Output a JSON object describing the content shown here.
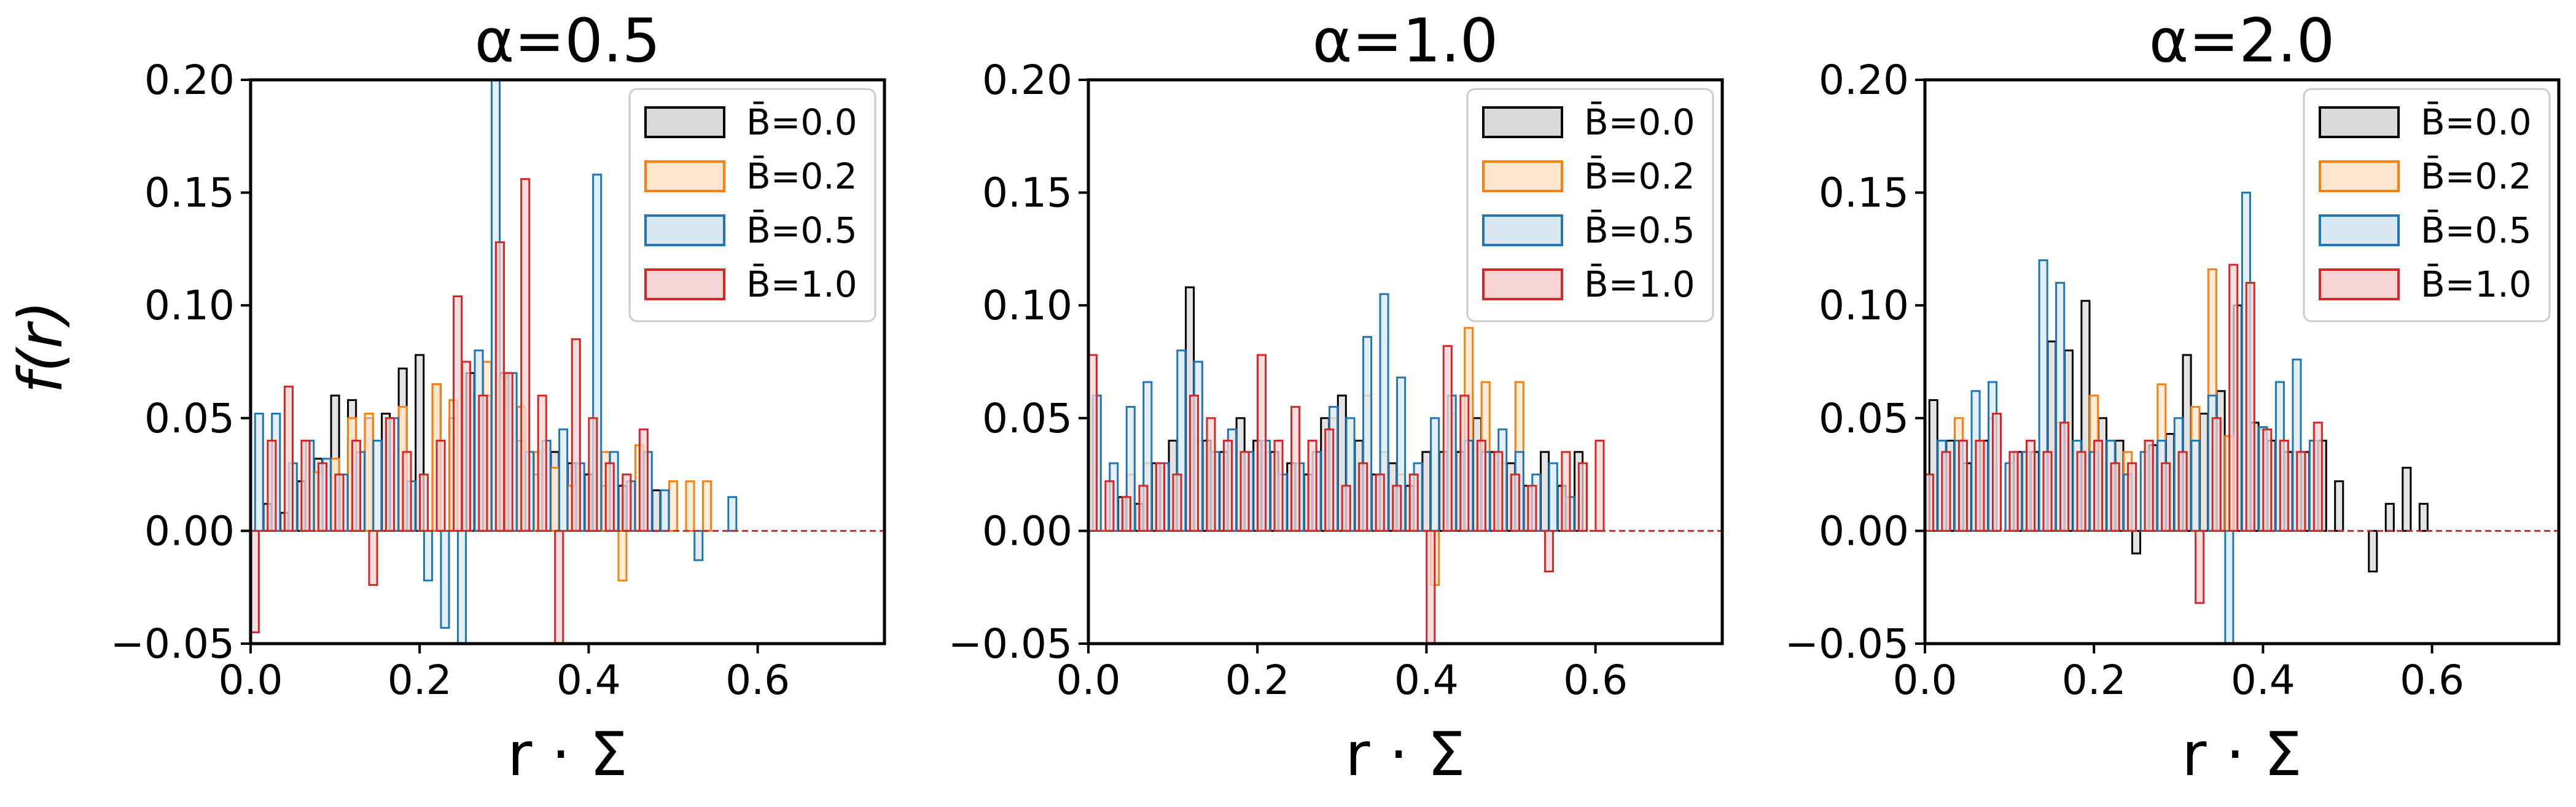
{
  "figure": {
    "ylabel": "f(r)"
  },
  "colors": {
    "B=0.0": "#000000",
    "B=0.2": "#ff7f0e",
    "B=0.5": "#1f77b4",
    "B=1.0": "#d62728"
  },
  "chart_data": [
    {
      "type": "bar",
      "title": "α=0.5",
      "xlabel": "r · Σ",
      "xlim": [
        0,
        0.75
      ],
      "ylim": [
        -0.05,
        0.2
      ],
      "xticks": [
        "0.0",
        "0.2",
        "0.4",
        "0.6"
      ],
      "yticks": [
        "−0.05",
        "0.00",
        "0.05",
        "0.10",
        "0.15",
        "0.20"
      ],
      "legend": {
        "position": "top-right",
        "entries": [
          "B̄=0.0",
          "B̄=0.2",
          "B̄=0.5",
          "B̄=1.0"
        ]
      },
      "series": [
        {
          "name": "B̄=0.0",
          "x": [
            0.02,
            0.04,
            0.06,
            0.08,
            0.1,
            0.12,
            0.14,
            0.16,
            0.18,
            0.2,
            0.22,
            0.24,
            0.26,
            0.28,
            0.3,
            0.32,
            0.34,
            0.36,
            0.38,
            0.4,
            0.42,
            0.44,
            0.48
          ],
          "values": [
            0.012,
            0.008,
            0.022,
            0.032,
            0.06,
            0.058,
            0.05,
            0.052,
            0.072,
            0.078,
            0.065,
            0.05,
            0.07,
            0.06,
            0.07,
            0.04,
            0.025,
            0.035,
            0.03,
            0.025,
            0.02,
            0.02,
            0.018
          ]
        },
        {
          "name": "B̄=0.2",
          "x": [
            0.08,
            0.1,
            0.12,
            0.14,
            0.18,
            0.22,
            0.24,
            0.28,
            0.3,
            0.32,
            0.34,
            0.36,
            0.38,
            0.42,
            0.44,
            0.46,
            0.5,
            0.52,
            0.54
          ],
          "values": [
            0.026,
            0.032,
            0.05,
            0.052,
            0.055,
            0.065,
            0.058,
            0.075,
            0.068,
            0.055,
            0.035,
            0.028,
            0.02,
            0.035,
            -0.022,
            0.038,
            0.022,
            0.022,
            0.022
          ]
        },
        {
          "name": "B̄=0.5",
          "x": [
            0.01,
            0.03,
            0.05,
            0.07,
            0.09,
            0.11,
            0.13,
            0.15,
            0.17,
            0.19,
            0.21,
            0.23,
            0.25,
            0.27,
            0.29,
            0.31,
            0.33,
            0.35,
            0.37,
            0.39,
            0.41,
            0.43,
            0.45,
            0.47,
            0.49,
            0.53,
            0.57
          ],
          "values": [
            0.052,
            0.052,
            0.03,
            0.04,
            0.032,
            0.025,
            0.035,
            0.04,
            0.05,
            0.022,
            -0.022,
            -0.043,
            -0.05,
            0.08,
            0.2,
            0.07,
            0.035,
            0.04,
            0.045,
            0.03,
            0.158,
            0.035,
            0.022,
            0.035,
            0.018,
            -0.013,
            0.015
          ]
        },
        {
          "name": "B̄=1.0",
          "x": [
            0.005,
            0.025,
            0.045,
            0.065,
            0.085,
            0.105,
            0.125,
            0.145,
            0.165,
            0.185,
            0.205,
            0.225,
            0.245,
            0.255,
            0.275,
            0.295,
            0.305,
            0.325,
            0.345,
            0.365,
            0.385,
            0.405,
            0.425,
            0.445,
            0.465
          ],
          "values": [
            -0.045,
            0.04,
            0.064,
            0.04,
            0.03,
            0.025,
            0.04,
            -0.024,
            0.05,
            0.035,
            0.025,
            0.04,
            0.104,
            0.075,
            0.06,
            0.128,
            0.07,
            0.156,
            0.06,
            -0.05,
            0.085,
            0.05,
            0.03,
            0.025,
            0.045
          ]
        }
      ]
    },
    {
      "type": "bar",
      "title": "α=1.0",
      "xlabel": "r · Σ",
      "xlim": [
        0,
        0.75
      ],
      "ylim": [
        -0.05,
        0.2
      ],
      "xticks": [
        "0.0",
        "0.2",
        "0.4",
        "0.6"
      ],
      "yticks": [
        "−0.05",
        "0.00",
        "0.05",
        "0.10",
        "0.15",
        "0.20"
      ],
      "legend": {
        "position": "top-right",
        "entries": [
          "B̄=0.0",
          "B̄=0.2",
          "B̄=0.5",
          "B̄=1.0"
        ]
      },
      "series": [
        {
          "name": "B̄=0.0",
          "x": [
            0.04,
            0.06,
            0.08,
            0.1,
            0.12,
            0.14,
            0.16,
            0.18,
            0.2,
            0.22,
            0.24,
            0.26,
            0.28,
            0.3,
            0.32,
            0.34,
            0.36,
            0.38,
            0.4,
            0.42,
            0.44,
            0.46,
            0.48,
            0.5,
            0.52,
            0.54,
            0.56,
            0.58
          ],
          "values": [
            0.015,
            0.012,
            0.03,
            0.04,
            0.108,
            0.04,
            0.035,
            0.05,
            0.04,
            0.035,
            0.03,
            0.025,
            0.05,
            0.06,
            0.04,
            0.025,
            0.03,
            0.02,
            0.035,
            0.035,
            0.035,
            0.05,
            0.035,
            0.03,
            0.02,
            0.035,
            0.02,
            0.035
          ]
        },
        {
          "name": "B̄=0.2",
          "x": [
            0.05,
            0.07,
            0.13,
            0.17,
            0.21,
            0.25,
            0.29,
            0.33,
            0.35,
            0.37,
            0.41,
            0.43,
            0.45,
            0.47,
            0.49,
            0.51
          ],
          "values": [
            0.025,
            0.03,
            0.04,
            0.045,
            0.035,
            0.03,
            0.05,
            0.06,
            0.035,
            0.025,
            -0.024,
            0.052,
            0.09,
            0.066,
            0.03,
            0.066
          ]
        },
        {
          "name": "B̄=0.5",
          "x": [
            0.01,
            0.03,
            0.05,
            0.07,
            0.09,
            0.11,
            0.13,
            0.15,
            0.17,
            0.19,
            0.21,
            0.23,
            0.25,
            0.27,
            0.29,
            0.31,
            0.33,
            0.35,
            0.37,
            0.39,
            0.41,
            0.43,
            0.45,
            0.47,
            0.49,
            0.51,
            0.53,
            0.55,
            0.57
          ],
          "values": [
            0.06,
            0.03,
            0.055,
            0.066,
            0.03,
            0.08,
            0.075,
            0.035,
            0.045,
            0.035,
            0.04,
            0.025,
            0.03,
            0.035,
            0.055,
            0.05,
            0.086,
            0.105,
            0.068,
            0.03,
            0.05,
            0.06,
            0.04,
            0.035,
            0.045,
            0.035,
            0.025,
            0.03,
            0.015
          ]
        },
        {
          "name": "B̄=1.0",
          "x": [
            0.005,
            0.025,
            0.045,
            0.065,
            0.085,
            0.105,
            0.125,
            0.145,
            0.165,
            0.185,
            0.205,
            0.225,
            0.245,
            0.265,
            0.285,
            0.305,
            0.325,
            0.345,
            0.365,
            0.385,
            0.405,
            0.425,
            0.445,
            0.465,
            0.485,
            0.505,
            0.525,
            0.545,
            0.565,
            0.585,
            0.605
          ],
          "values": [
            0.078,
            0.022,
            0.015,
            0.02,
            0.03,
            0.025,
            0.06,
            0.05,
            0.04,
            0.035,
            0.078,
            0.04,
            0.055,
            0.04,
            0.045,
            0.02,
            0.03,
            0.025,
            0.02,
            0.025,
            -0.05,
            0.082,
            0.06,
            0.04,
            0.035,
            0.025,
            0.02,
            -0.018,
            0.035,
            0.03,
            0.04
          ]
        }
      ]
    },
    {
      "type": "bar",
      "title": "α=2.0",
      "xlabel": "r · Σ",
      "xlim": [
        0,
        0.75
      ],
      "ylim": [
        -0.05,
        0.2
      ],
      "xticks": [
        "0.0",
        "0.2",
        "0.4",
        "0.6"
      ],
      "yticks": [
        "−0.05",
        "0.00",
        "0.05",
        "0.10",
        "0.15",
        "0.20"
      ],
      "legend": {
        "position": "top-right",
        "entries": [
          "B̄=0.0",
          "B̄=0.2",
          "B̄=0.5",
          "B̄=1.0"
        ]
      },
      "series": [
        {
          "name": "B̄=0.0",
          "x": [
            0.01,
            0.03,
            0.05,
            0.07,
            0.11,
            0.13,
            0.15,
            0.17,
            0.19,
            0.21,
            0.23,
            0.25,
            0.27,
            0.29,
            0.31,
            0.33,
            0.35,
            0.37,
            0.39,
            0.41,
            0.43,
            0.45,
            0.47,
            0.49,
            0.53,
            0.55,
            0.57,
            0.59
          ],
          "values": [
            0.058,
            0.04,
            0.03,
            0.04,
            0.035,
            0.035,
            0.084,
            0.08,
            0.102,
            0.05,
            0.04,
            -0.01,
            0.038,
            0.043,
            0.078,
            0.052,
            0.062,
            0.1,
            0.048,
            0.04,
            0.035,
            0.035,
            0.04,
            0.022,
            -0.018,
            0.012,
            0.028,
            0.012
          ]
        },
        {
          "name": "B̄=0.2",
          "x": [
            0.04,
            0.08,
            0.12,
            0.16,
            0.2,
            0.24,
            0.28,
            0.32,
            0.34,
            0.36,
            0.4,
            0.44
          ],
          "values": [
            0.05,
            0.05,
            0.035,
            0.048,
            0.06,
            0.035,
            0.065,
            0.055,
            0.116,
            0.042,
            0.045,
            0.035
          ]
        },
        {
          "name": "B̄=0.5",
          "x": [
            0.02,
            0.04,
            0.06,
            0.08,
            0.1,
            0.12,
            0.14,
            0.16,
            0.18,
            0.2,
            0.22,
            0.24,
            0.26,
            0.28,
            0.3,
            0.32,
            0.34,
            0.36,
            0.38,
            0.4,
            0.42,
            0.44,
            0.46
          ],
          "values": [
            0.04,
            0.04,
            0.062,
            0.066,
            0.03,
            0.035,
            0.12,
            0.11,
            0.04,
            0.035,
            0.04,
            0.025,
            0.035,
            0.04,
            0.05,
            0.04,
            0.06,
            -0.05,
            0.15,
            0.046,
            0.066,
            0.076,
            0.04
          ]
        },
        {
          "name": "B̄=1.0",
          "x": [
            0.005,
            0.025,
            0.045,
            0.065,
            0.085,
            0.105,
            0.125,
            0.145,
            0.165,
            0.185,
            0.205,
            0.225,
            0.245,
            0.265,
            0.285,
            0.305,
            0.325,
            0.345,
            0.365,
            0.385,
            0.405,
            0.425,
            0.445,
            0.465
          ],
          "values": [
            0.025,
            0.035,
            0.04,
            0.04,
            0.052,
            0.035,
            0.04,
            0.035,
            0.048,
            0.035,
            0.04,
            0.03,
            0.03,
            0.04,
            0.03,
            0.035,
            -0.032,
            0.05,
            0.118,
            0.11,
            0.045,
            0.04,
            0.035,
            0.048
          ]
        }
      ]
    }
  ]
}
